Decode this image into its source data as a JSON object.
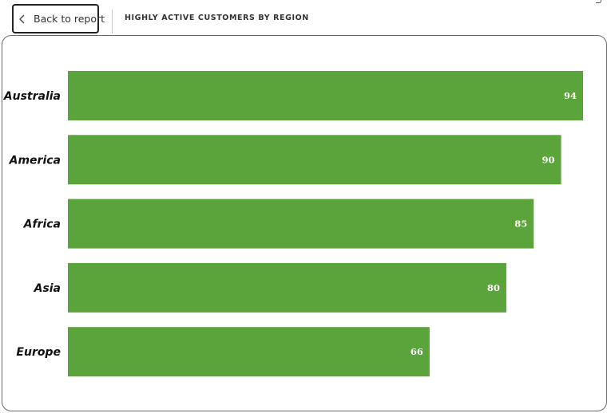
{
  "header": {
    "back_label": "Back to report",
    "title": "HIGHLY ACTIVE CUSTOMERS BY REGION"
  },
  "icons": {
    "back": "chevron-left-icon"
  },
  "colors": {
    "bar": "#5ba33b",
    "value_label": "#ffffff"
  },
  "chart_data": {
    "type": "bar",
    "orientation": "horizontal",
    "title": "HIGHLY ACTIVE CUSTOMERS BY REGION",
    "categories": [
      "Australia",
      "America",
      "Africa",
      "Asia",
      "Europe"
    ],
    "values": [
      94,
      90,
      85,
      80,
      66
    ],
    "xlim": [
      0,
      94
    ],
    "grid": false,
    "legend": "none",
    "data_labels": true,
    "xlabel": "",
    "ylabel": ""
  }
}
